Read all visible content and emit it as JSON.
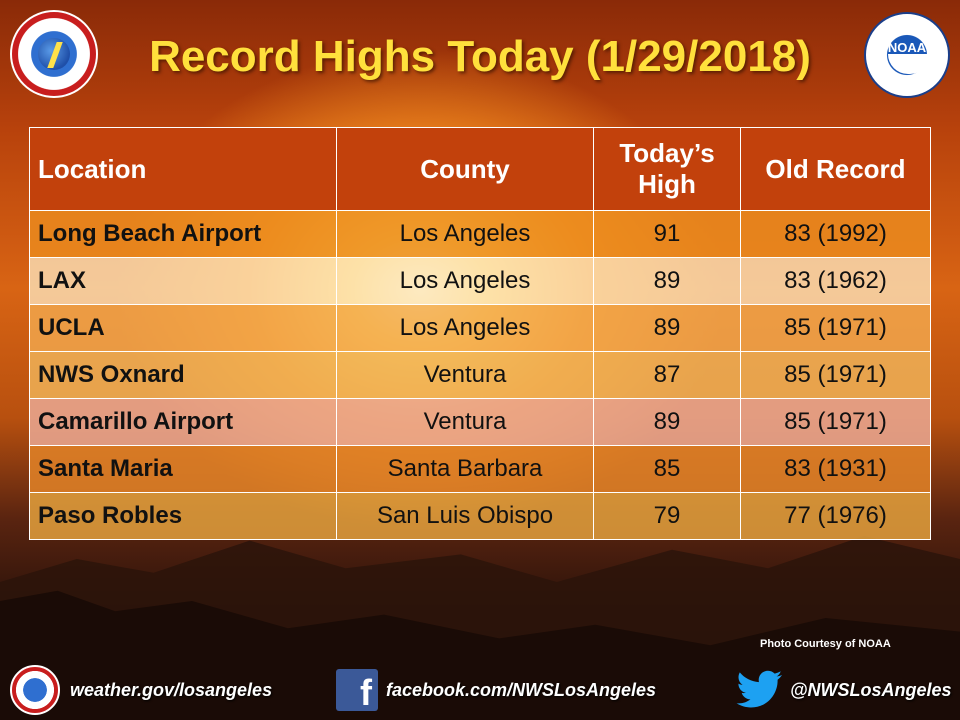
{
  "title": "Record Highs Today (1/29/2018)",
  "logos": {
    "nws_seal": "National Weather Service seal",
    "noaa_seal": "NOAA"
  },
  "table": {
    "headers": {
      "location": "Location",
      "county": "County",
      "todays_high": "Today’s High",
      "old_record": "Old Record"
    },
    "rows": [
      {
        "location": "Long Beach Airport",
        "county": "Los Angeles",
        "todays_high": "91",
        "old_record": "83 (1992)"
      },
      {
        "location": "LAX",
        "county": "Los Angeles",
        "todays_high": "89",
        "old_record": "83 (1962)"
      },
      {
        "location": "UCLA",
        "county": "Los Angeles",
        "todays_high": "89",
        "old_record": "85 (1971)"
      },
      {
        "location": "NWS Oxnard",
        "county": "Ventura",
        "todays_high": "87",
        "old_record": "85 (1971)"
      },
      {
        "location": "Camarillo Airport",
        "county": "Ventura",
        "todays_high": "89",
        "old_record": "85 (1971)"
      },
      {
        "location": "Santa Maria",
        "county": "Santa Barbara",
        "todays_high": "85",
        "old_record": "83 (1931)"
      },
      {
        "location": "Paso Robles",
        "county": "San Luis Obispo",
        "todays_high": "79",
        "old_record": "77 (1976)"
      }
    ]
  },
  "credit": "Photo Courtesy  of NOAA",
  "footer": {
    "website": "weather.gov/losangeles",
    "facebook": "facebook.com/NWSLosAngeles",
    "twitter": "@NWSLosAngeles",
    "facebook_icon_letter": "f"
  },
  "colors": {
    "title": "#ffe03c",
    "header_bg": "#c2410c",
    "facebook_blue": "#3b5998",
    "twitter_blue": "#1da1f2"
  }
}
